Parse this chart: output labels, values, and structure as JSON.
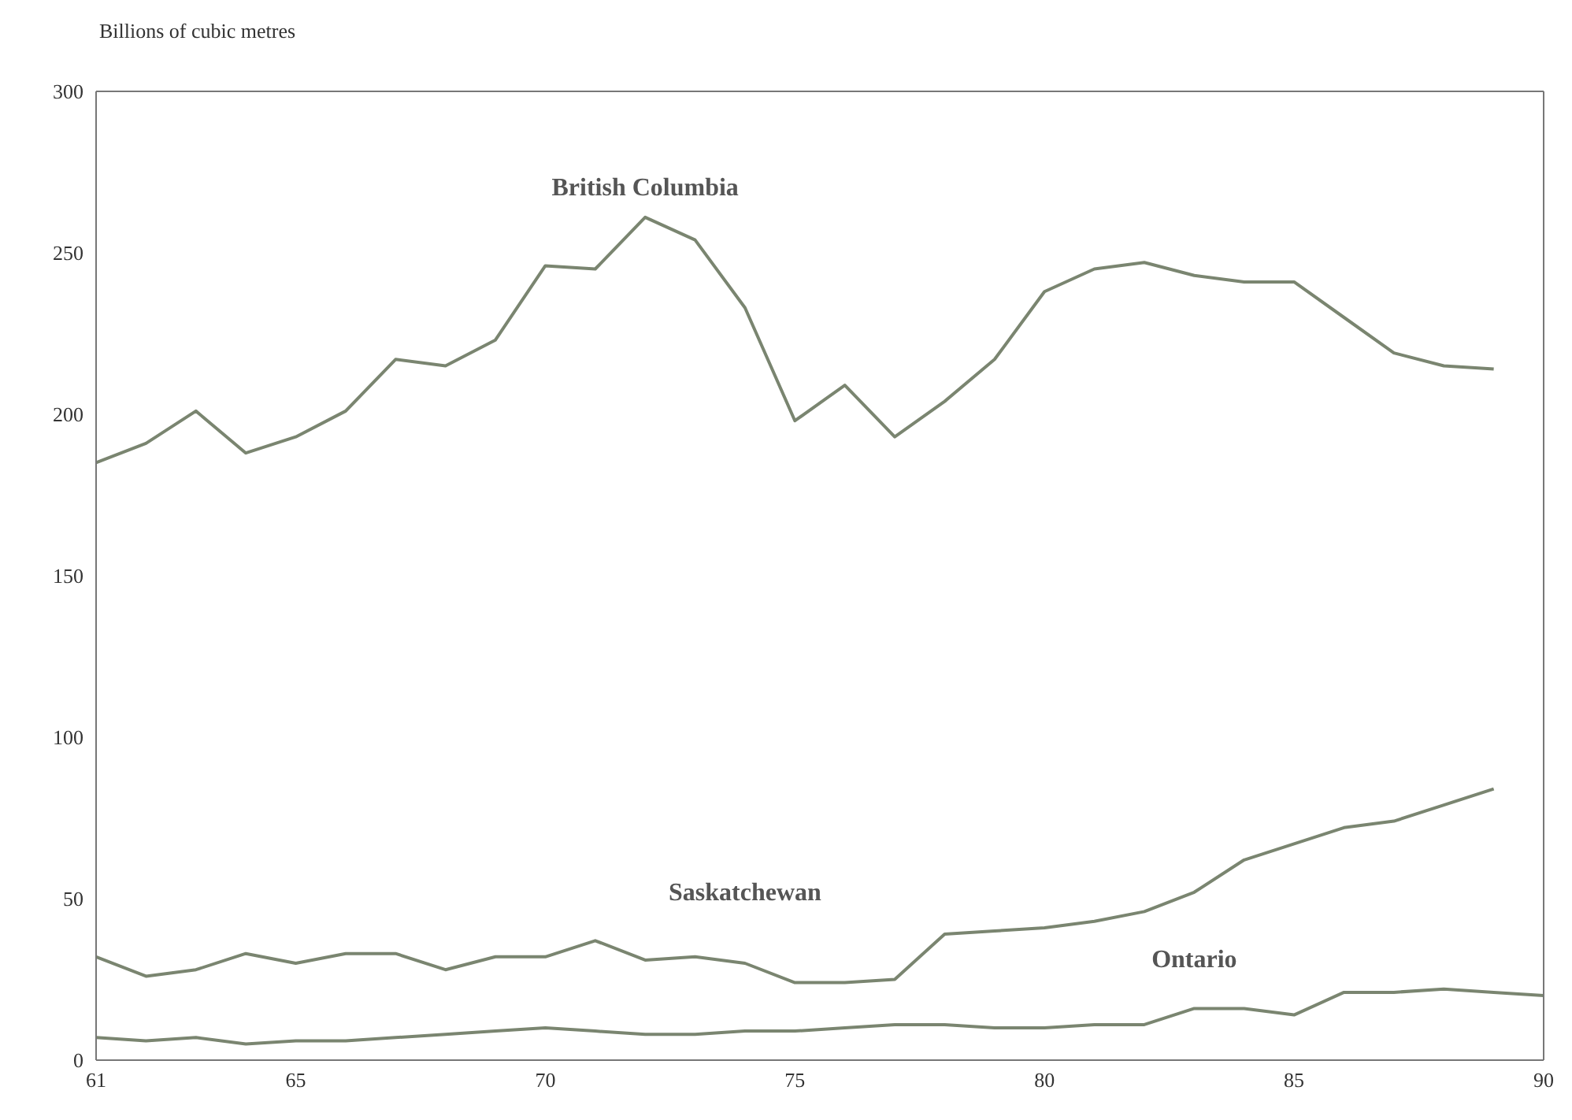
{
  "chart_data": {
    "type": "line",
    "ylabel": "Billions of cubic metres",
    "xlim": [
      61,
      90
    ],
    "xticks": [
      61,
      65,
      70,
      75,
      80,
      85,
      90
    ],
    "ylim": [
      0,
      300
    ],
    "yticks": [
      0,
      50,
      100,
      150,
      200,
      250,
      300
    ],
    "marker": "none",
    "line_style": "solid",
    "series": [
      {
        "name": "British Columbia",
        "color": "#7a8570",
        "x": [
          61,
          62,
          63,
          64,
          65,
          66,
          67,
          68,
          69,
          70,
          71,
          72,
          73,
          74,
          75,
          76,
          77,
          78,
          79,
          80,
          81,
          82,
          83,
          84,
          85,
          86,
          87,
          88,
          89
        ],
        "values": [
          185,
          191,
          201,
          188,
          193,
          201,
          217,
          215,
          223,
          246,
          245,
          261,
          254,
          233,
          198,
          209,
          193,
          204,
          217,
          238,
          245,
          247,
          243,
          241,
          241,
          230,
          219,
          215,
          214
        ]
      },
      {
        "name": "Saskatchewan",
        "color": "#7a8570",
        "x": [
          61,
          62,
          63,
          64,
          65,
          66,
          67,
          68,
          69,
          70,
          71,
          72,
          73,
          74,
          75,
          76,
          77,
          78,
          79,
          80,
          81,
          82,
          83,
          84,
          85,
          86,
          87,
          88,
          89
        ],
        "values": [
          32,
          26,
          28,
          33,
          30,
          33,
          33,
          28,
          32,
          32,
          37,
          31,
          32,
          30,
          24,
          24,
          25,
          39,
          40,
          41,
          43,
          46,
          52,
          62,
          67,
          72,
          74,
          79,
          84
        ]
      },
      {
        "name": "Ontario",
        "color": "#7a8570",
        "x": [
          61,
          62,
          63,
          64,
          65,
          66,
          67,
          68,
          69,
          70,
          71,
          72,
          73,
          74,
          75,
          76,
          77,
          78,
          79,
          80,
          81,
          82,
          83,
          84,
          85,
          86,
          87,
          88,
          89,
          90
        ],
        "values": [
          7,
          6,
          7,
          5,
          6,
          6,
          7,
          8,
          9,
          10,
          9,
          8,
          8,
          9,
          9,
          10,
          11,
          11,
          10,
          10,
          11,
          11,
          16,
          16,
          14,
          21,
          21,
          22,
          21,
          20
        ]
      }
    ]
  }
}
